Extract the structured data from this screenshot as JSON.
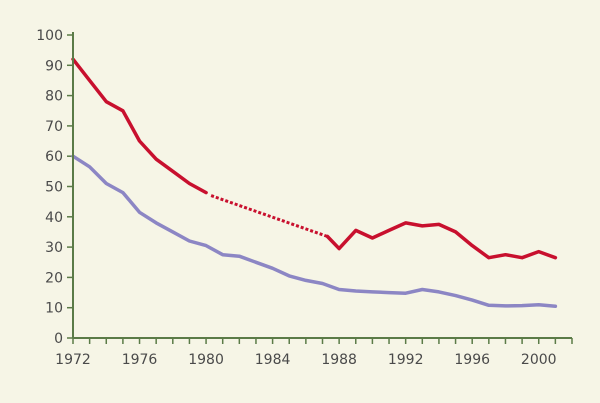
{
  "chart_data": {
    "type": "line",
    "title": "",
    "xlabel": "",
    "ylabel": "",
    "xlim": [
      1972,
      2002
    ],
    "ylim": [
      0,
      100
    ],
    "grid": false,
    "legend": "none",
    "x_ticks": [
      "1972",
      "1976",
      "1980",
      "1984",
      "1988",
      "1992",
      "1996",
      "2000"
    ],
    "y_ticks": [
      "0",
      "10",
      "20",
      "30",
      "40",
      "50",
      "60",
      "70",
      "80",
      "90",
      "100"
    ],
    "series": [
      {
        "color": "#c8102e",
        "line_style": "solid",
        "segments": [
          {
            "style": "solid",
            "points": [
              [
                1972,
                92
              ],
              [
                1973,
                85
              ],
              [
                1974,
                78
              ],
              [
                1975,
                75
              ],
              [
                1976,
                65
              ],
              [
                1977,
                59
              ],
              [
                1978,
                55
              ],
              [
                1979,
                51
              ],
              [
                1980,
                48
              ]
            ]
          },
          {
            "style": "dotted",
            "points": [
              [
                1980.3,
                47
              ],
              [
                1987.3,
                33.5
              ]
            ]
          },
          {
            "style": "solid",
            "points": [
              [
                1987.3,
                33.5
              ],
              [
                1988,
                29.5
              ],
              [
                1989,
                35.5
              ],
              [
                1990,
                33
              ],
              [
                1991,
                35.5
              ],
              [
                1992,
                38
              ],
              [
                1993,
                37
              ],
              [
                1994,
                37.5
              ],
              [
                1995,
                35
              ],
              [
                1996,
                30.5
              ],
              [
                1997,
                26.5
              ],
              [
                1998,
                27.5
              ],
              [
                1999,
                26.5
              ],
              [
                2000,
                28.5
              ],
              [
                2001,
                26.5
              ]
            ]
          }
        ]
      },
      {
        "color": "#8c86c4",
        "line_style": "solid",
        "segments": [
          {
            "style": "solid",
            "points": [
              [
                1972,
                60
              ],
              [
                1973,
                56.5
              ],
              [
                1974,
                51
              ],
              [
                1975,
                48
              ],
              [
                1976,
                41.5
              ],
              [
                1977,
                38
              ],
              [
                1978,
                35
              ],
              [
                1979,
                32
              ],
              [
                1980,
                30.5
              ],
              [
                1981,
                27.5
              ],
              [
                1982,
                27
              ],
              [
                1983,
                25
              ],
              [
                1984,
                23
              ],
              [
                1985,
                20.5
              ],
              [
                1986,
                19
              ],
              [
                1987,
                18
              ],
              [
                1988,
                16
              ],
              [
                1989,
                15.5
              ],
              [
                1990,
                15.2
              ],
              [
                1991,
                15
              ],
              [
                1992,
                14.8
              ],
              [
                1993,
                16
              ],
              [
                1994,
                15.2
              ],
              [
                1995,
                14
              ],
              [
                1996,
                12.5
              ],
              [
                1997,
                10.8
              ],
              [
                1998,
                10.6
              ],
              [
                1999,
                10.7
              ],
              [
                2000,
                11
              ],
              [
                2001,
                10.5
              ]
            ]
          }
        ]
      }
    ]
  }
}
